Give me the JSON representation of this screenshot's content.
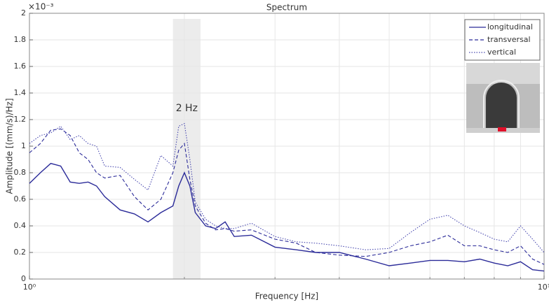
{
  "chart_data": {
    "type": "line",
    "title": "Spectrum",
    "x_label": "Frequency [Hz]",
    "y_label": "Amplitude [(mm/s)/Hz]",
    "y_scale_label": "×10⁻³",
    "log_x": true,
    "grid": true,
    "legend": "upper right",
    "xlim": [
      1,
      10
    ],
    "xticks": [
      {
        "value": 1,
        "label": "10⁰"
      },
      {
        "value": 10,
        "label": "10¹"
      }
    ],
    "xminorticks": [
      2,
      3,
      4,
      5,
      6,
      7,
      8,
      9
    ],
    "ylim": [
      0,
      2
    ],
    "yticks": [
      0,
      0.2,
      0.4,
      0.6,
      0.8,
      1,
      1.2,
      1.4,
      1.6,
      1.8,
      2
    ],
    "highlight": {
      "xrange": [
        1.9,
        2.15
      ],
      "label": "2 Hz"
    },
    "x": [
      1,
      1.05,
      1.1,
      1.15,
      1.2,
      1.25,
      1.3,
      1.35,
      1.4,
      1.5,
      1.6,
      1.7,
      1.8,
      1.9,
      1.95,
      2.0,
      2.05,
      2.1,
      2.2,
      2.3,
      2.4,
      2.5,
      2.7,
      3.0,
      3.3,
      3.6,
      4.0,
      4.5,
      5.0,
      5.5,
      6.0,
      6.5,
      7.0,
      7.5,
      8.0,
      8.5,
      9.0,
      9.5,
      10
    ],
    "series": [
      {
        "name": "longitudinal",
        "color": "#2b2b99",
        "style": "solid",
        "values": [
          0.72,
          0.8,
          0.87,
          0.85,
          0.73,
          0.72,
          0.73,
          0.7,
          0.62,
          0.52,
          0.49,
          0.43,
          0.5,
          0.55,
          0.7,
          0.8,
          0.7,
          0.5,
          0.4,
          0.38,
          0.43,
          0.32,
          0.33,
          0.24,
          0.22,
          0.2,
          0.2,
          0.15,
          0.1,
          0.12,
          0.14,
          0.14,
          0.13,
          0.15,
          0.12,
          0.1,
          0.13,
          0.07,
          0.06
        ]
      },
      {
        "name": "transversal",
        "color": "#2b2b99",
        "style": "dashed",
        "values": [
          0.95,
          1.02,
          1.12,
          1.13,
          1.08,
          0.95,
          0.9,
          0.8,
          0.76,
          0.78,
          0.62,
          0.52,
          0.6,
          0.8,
          0.97,
          1.02,
          0.75,
          0.55,
          0.42,
          0.37,
          0.38,
          0.36,
          0.37,
          0.3,
          0.27,
          0.2,
          0.18,
          0.17,
          0.2,
          0.25,
          0.28,
          0.33,
          0.25,
          0.25,
          0.22,
          0.2,
          0.25,
          0.15,
          0.11
        ]
      },
      {
        "name": "vertical",
        "color": "#4a4ab0",
        "style": "dotted",
        "values": [
          1.02,
          1.08,
          1.1,
          1.15,
          1.05,
          1.08,
          1.02,
          1.0,
          0.85,
          0.84,
          0.75,
          0.67,
          0.93,
          0.85,
          1.15,
          1.17,
          0.9,
          0.58,
          0.45,
          0.4,
          0.38,
          0.38,
          0.42,
          0.32,
          0.28,
          0.27,
          0.25,
          0.22,
          0.23,
          0.35,
          0.45,
          0.48,
          0.4,
          0.35,
          0.3,
          0.28,
          0.4,
          0.3,
          0.2
        ]
      }
    ]
  }
}
